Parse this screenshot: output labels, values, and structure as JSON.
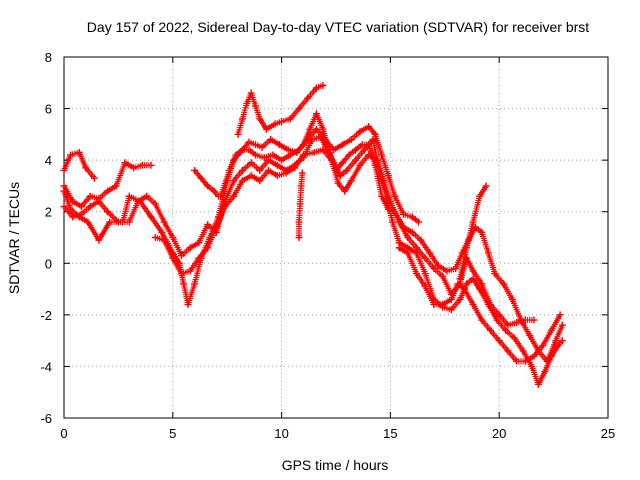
{
  "chart_data": {
    "type": "scatter",
    "title": "Day 157 of 2022, Sidereal Day-to-day VTEC variation (SDTVAR) for receiver brst",
    "xlabel": "GPS time / hours",
    "ylabel": "SDTVAR / TECUs",
    "xlim": [
      0,
      25
    ],
    "ylim": [
      -6,
      8
    ],
    "xticks": [
      0,
      5,
      10,
      15,
      20,
      25
    ],
    "yticks": [
      -6,
      -4,
      -2,
      0,
      2,
      4,
      6,
      8
    ],
    "grid": true,
    "marker": "+",
    "color": "#ff0000",
    "series": [
      {
        "name": "track-1",
        "points": [
          [
            0.0,
            3.6
          ],
          [
            0.3,
            4.2
          ],
          [
            0.7,
            4.3
          ],
          [
            1.0,
            3.7
          ],
          [
            1.4,
            3.3
          ]
        ]
      },
      {
        "name": "track-2",
        "points": [
          [
            0.0,
            2.8
          ],
          [
            0.3,
            2.1
          ],
          [
            0.7,
            1.8
          ],
          [
            1.1,
            1.6
          ],
          [
            1.6,
            0.9
          ],
          [
            2.1,
            1.6
          ],
          [
            2.7,
            1.6
          ],
          [
            3.0,
            2.6
          ],
          [
            3.5,
            2.4
          ],
          [
            4.0,
            1.8
          ],
          [
            4.5,
            1.2
          ],
          [
            5.0,
            0.4
          ],
          [
            5.3,
            0.0
          ],
          [
            5.5,
            -0.8
          ],
          [
            5.7,
            -1.6
          ],
          [
            6.0,
            -0.8
          ],
          [
            6.3,
            0.2
          ],
          [
            6.7,
            1.0
          ],
          [
            7.1,
            1.8
          ],
          [
            7.5,
            3.2
          ],
          [
            7.8,
            4.0
          ],
          [
            8.1,
            4.3
          ],
          [
            8.5,
            4.7
          ],
          [
            8.8,
            4.6
          ],
          [
            9.1,
            4.5
          ],
          [
            9.5,
            4.8
          ],
          [
            9.9,
            4.6
          ],
          [
            10.3,
            4.4
          ],
          [
            10.7,
            4.3
          ],
          [
            11.0,
            4.6
          ],
          [
            11.3,
            5.2
          ],
          [
            11.6,
            5.8
          ],
          [
            11.9,
            5.2
          ],
          [
            12.2,
            4.3
          ],
          [
            12.5,
            3.6
          ],
          [
            12.8,
            3.9
          ],
          [
            13.1,
            4.2
          ],
          [
            13.4,
            4.4
          ],
          [
            13.7,
            4.6
          ],
          [
            14.0,
            4.6
          ],
          [
            14.3,
            3.8
          ],
          [
            14.6,
            2.6
          ],
          [
            14.9,
            2.1
          ],
          [
            15.2,
            2.0
          ],
          [
            15.6,
            1.4
          ],
          [
            16.0,
            1.2
          ],
          [
            16.4,
            0.9
          ],
          [
            16.8,
            0.4
          ],
          [
            17.2,
            -0.1
          ],
          [
            17.6,
            -0.3
          ],
          [
            18.0,
            -0.2
          ],
          [
            18.3,
            0.4
          ],
          [
            18.6,
            0.9
          ],
          [
            18.9,
            1.4
          ],
          [
            19.2,
            1.2
          ],
          [
            19.5,
            0.4
          ],
          [
            19.8,
            -0.4
          ],
          [
            20.2,
            -0.8
          ],
          [
            20.6,
            -1.4
          ],
          [
            21.0,
            -2.2
          ],
          [
            21.4,
            -2.8
          ],
          [
            21.8,
            -3.4
          ],
          [
            22.2,
            -3.8
          ],
          [
            22.6,
            -3.0
          ],
          [
            22.9,
            -2.4
          ]
        ]
      },
      {
        "name": "track-3",
        "points": [
          [
            0.0,
            2.2
          ],
          [
            0.4,
            1.8
          ],
          [
            0.8,
            1.9
          ],
          [
            1.2,
            2.2
          ],
          [
            1.6,
            2.4
          ],
          [
            2.0,
            2.0
          ],
          [
            2.5,
            1.6
          ],
          [
            3.0,
            1.6
          ],
          [
            3.4,
            2.4
          ],
          [
            3.8,
            2.6
          ],
          [
            4.2,
            2.3
          ],
          [
            4.6,
            1.6
          ],
          [
            5.0,
            1.0
          ],
          [
            5.4,
            0.3
          ],
          [
            5.8,
            0.6
          ],
          [
            6.2,
            0.8
          ],
          [
            6.6,
            1.5
          ],
          [
            7.0,
            1.2
          ],
          [
            7.4,
            2.4
          ],
          [
            7.8,
            3.2
          ],
          [
            8.2,
            3.6
          ],
          [
            8.6,
            3.9
          ],
          [
            9.0,
            3.6
          ],
          [
            9.4,
            4.0
          ],
          [
            9.8,
            3.8
          ],
          [
            10.2,
            3.6
          ],
          [
            10.6,
            3.8
          ],
          [
            11.0,
            4.1
          ],
          [
            11.4,
            4.8
          ],
          [
            11.8,
            4.9
          ],
          [
            12.1,
            4.4
          ],
          [
            12.4,
            3.9
          ],
          [
            12.7,
            3.4
          ],
          [
            13.0,
            3.6
          ],
          [
            13.4,
            4.0
          ],
          [
            13.8,
            4.4
          ],
          [
            14.2,
            4.8
          ],
          [
            14.5,
            3.5
          ],
          [
            14.8,
            2.6
          ],
          [
            15.1,
            1.6
          ],
          [
            15.4,
            0.8
          ],
          [
            15.8,
            0.6
          ],
          [
            16.2,
            0.4
          ],
          [
            16.6,
            -0.4
          ],
          [
            17.0,
            -1.4
          ],
          [
            17.4,
            -1.7
          ],
          [
            17.8,
            -1.8
          ],
          [
            18.2,
            -1.4
          ],
          [
            18.5,
            -0.8
          ],
          [
            18.8,
            -0.6
          ],
          [
            19.1,
            -1.0
          ],
          [
            19.5,
            -1.6
          ],
          [
            19.9,
            -2.2
          ],
          [
            20.3,
            -2.6
          ],
          [
            20.7,
            -2.9
          ],
          [
            21.1,
            -3.4
          ],
          [
            21.5,
            -4.0
          ],
          [
            21.8,
            -4.7
          ],
          [
            22.1,
            -4.2
          ],
          [
            22.4,
            -3.6
          ],
          [
            22.7,
            -3.2
          ],
          [
            22.9,
            -3.0
          ]
        ]
      },
      {
        "name": "track-4",
        "points": [
          [
            0.0,
            3.0
          ],
          [
            0.4,
            2.4
          ],
          [
            0.8,
            2.2
          ],
          [
            1.2,
            2.6
          ],
          [
            1.6,
            2.5
          ],
          [
            2.0,
            2.8
          ],
          [
            2.4,
            3.0
          ],
          [
            2.8,
            3.9
          ],
          [
            3.2,
            3.7
          ],
          [
            3.6,
            3.8
          ],
          [
            4.0,
            3.8
          ]
        ]
      },
      {
        "name": "track-5",
        "points": [
          [
            4.2,
            1.0
          ],
          [
            4.6,
            0.9
          ],
          [
            5.0,
            0.2
          ],
          [
            5.4,
            -0.4
          ],
          [
            5.8,
            -0.3
          ],
          [
            6.2,
            0.2
          ],
          [
            6.6,
            0.6
          ],
          [
            7.0,
            1.4
          ],
          [
            7.4,
            2.2
          ],
          [
            7.8,
            2.6
          ],
          [
            8.2,
            3.2
          ],
          [
            8.6,
            3.4
          ],
          [
            9.0,
            3.2
          ],
          [
            9.4,
            3.6
          ],
          [
            9.8,
            3.4
          ],
          [
            10.2,
            3.5
          ],
          [
            10.6,
            3.7
          ],
          [
            11.0,
            4.2
          ],
          [
            11.5,
            4.3
          ],
          [
            11.9,
            4.4
          ],
          [
            12.3,
            4.0
          ],
          [
            12.6,
            3.1
          ],
          [
            12.9,
            2.8
          ],
          [
            13.2,
            3.2
          ],
          [
            13.6,
            3.8
          ],
          [
            14.0,
            4.2
          ],
          [
            14.4,
            4.0
          ],
          [
            14.7,
            3.2
          ],
          [
            15.0,
            2.4
          ],
          [
            15.4,
            1.6
          ],
          [
            15.8,
            1.0
          ],
          [
            16.2,
            0.6
          ],
          [
            16.6,
            0.2
          ],
          [
            17.0,
            -0.2
          ],
          [
            17.4,
            -0.5
          ],
          [
            17.8,
            -1.2
          ],
          [
            18.2,
            -0.8
          ],
          [
            18.5,
            0.2
          ],
          [
            18.8,
            -0.3
          ],
          [
            19.2,
            -0.8
          ],
          [
            19.6,
            -1.6
          ],
          [
            20.0,
            -2.0
          ],
          [
            20.4,
            -2.4
          ],
          [
            20.8,
            -2.3
          ],
          [
            21.2,
            -2.2
          ],
          [
            21.6,
            -2.2
          ]
        ]
      },
      {
        "name": "track-6",
        "points": [
          [
            6.0,
            3.6
          ],
          [
            6.3,
            3.3
          ],
          [
            6.6,
            3.0
          ],
          [
            6.9,
            2.8
          ],
          [
            7.1,
            2.6
          ]
        ]
      },
      {
        "name": "track-7",
        "points": [
          [
            8.0,
            5.0
          ],
          [
            8.2,
            5.6
          ],
          [
            8.4,
            6.2
          ],
          [
            8.6,
            6.6
          ],
          [
            8.8,
            6.1
          ],
          [
            9.0,
            5.6
          ],
          [
            9.3,
            5.2
          ],
          [
            9.7,
            5.4
          ],
          [
            10.0,
            5.5
          ],
          [
            10.4,
            5.6
          ],
          [
            10.8,
            6.0
          ],
          [
            11.2,
            6.4
          ],
          [
            11.6,
            6.8
          ],
          [
            11.9,
            6.9
          ]
        ]
      },
      {
        "name": "track-8",
        "points": [
          [
            7.2,
            2.6
          ],
          [
            7.6,
            3.6
          ],
          [
            7.9,
            4.2
          ],
          [
            8.2,
            4.4
          ],
          [
            8.5,
            4.4
          ],
          [
            8.8,
            4.2
          ],
          [
            9.2,
            4.1
          ],
          [
            9.6,
            4.2
          ],
          [
            10.0,
            4.0
          ],
          [
            10.4,
            4.2
          ],
          [
            10.8,
            4.4
          ],
          [
            11.2,
            4.8
          ],
          [
            11.6,
            5.2
          ],
          [
            12.0,
            4.8
          ],
          [
            12.4,
            4.4
          ],
          [
            12.8,
            4.6
          ],
          [
            13.2,
            4.8
          ],
          [
            13.6,
            5.1
          ],
          [
            14.0,
            5.3
          ],
          [
            14.3,
            5.0
          ],
          [
            14.6,
            4.2
          ],
          [
            14.9,
            3.4
          ],
          [
            15.2,
            2.6
          ],
          [
            15.6,
            1.9
          ],
          [
            16.0,
            1.8
          ],
          [
            16.3,
            1.6
          ]
        ]
      },
      {
        "name": "track-9",
        "points": [
          [
            18.2,
            -0.6
          ],
          [
            18.5,
            0.6
          ],
          [
            18.8,
            1.6
          ],
          [
            19.1,
            2.6
          ],
          [
            19.4,
            3.0
          ]
        ]
      },
      {
        "name": "track-10",
        "points": [
          [
            15.4,
            0.6
          ],
          [
            15.8,
            0.4
          ],
          [
            16.2,
            -0.4
          ],
          [
            16.6,
            -0.9
          ],
          [
            17.0,
            -1.6
          ],
          [
            17.4,
            -1.6
          ],
          [
            17.8,
            -1.4
          ],
          [
            18.1,
            -0.8
          ],
          [
            18.4,
            -1.0
          ],
          [
            18.8,
            -1.6
          ],
          [
            19.2,
            -2.2
          ],
          [
            19.6,
            -2.6
          ],
          [
            20.0,
            -3.0
          ],
          [
            20.4,
            -3.4
          ],
          [
            20.8,
            -3.8
          ],
          [
            21.2,
            -3.8
          ],
          [
            21.6,
            -3.6
          ],
          [
            22.0,
            -3.2
          ],
          [
            22.4,
            -2.6
          ],
          [
            22.8,
            -2.0
          ]
        ]
      },
      {
        "name": "track-11",
        "points": [
          [
            10.8,
            1.0
          ],
          [
            10.8,
            1.6
          ],
          [
            10.85,
            2.3
          ],
          [
            10.9,
            3.0
          ],
          [
            10.95,
            3.5
          ]
        ]
      }
    ]
  }
}
